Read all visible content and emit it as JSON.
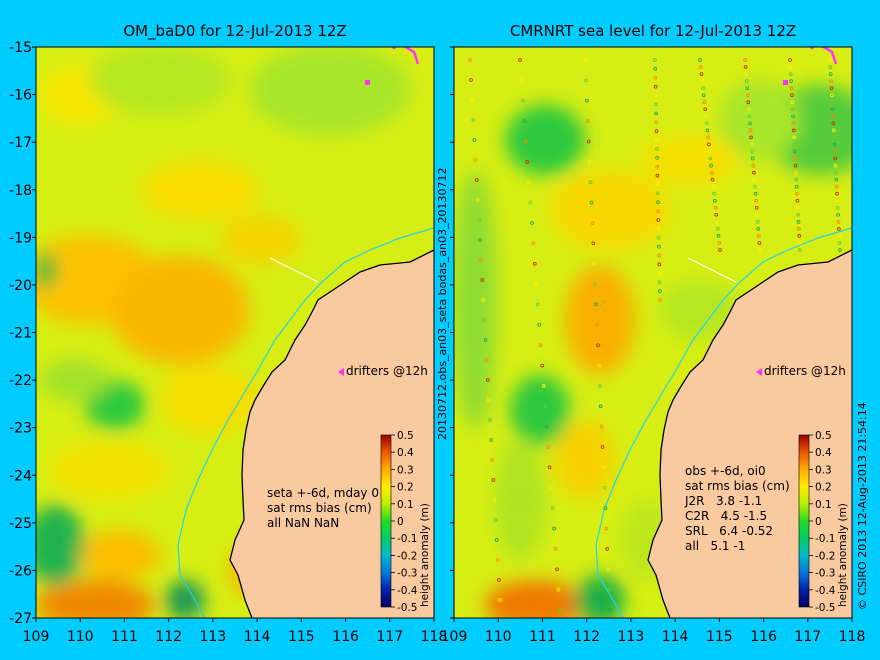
{
  "panels": [
    {
      "title": "OM_baD0 for 12-Jul-2013 12Z",
      "drifters": "drifters @12h",
      "stats": [
        "seta +-6d, mday 0",
        "sat rms bias (cm)",
        "all NaN NaN"
      ]
    },
    {
      "title": "CMRNRT sea level  for 12-Jul-2013 12Z",
      "drifters": "drifters @12h",
      "stats": [
        "obs +-6d, oi0",
        "sat rms bias (cm)",
        "J2R   3.8 -1.1",
        "C2R   4.5 -1.5",
        "SRL   6.4 -0.52",
        "all   5.1 -1"
      ]
    }
  ],
  "center_vertical_label": "20130712.obs_an03_seta     bodas_an03_20130712",
  "right_vertical_label": "© CSIRO 2013   12-Aug-2013 21:54:14",
  "x_ticks": [
    "109",
    "110",
    "111",
    "112",
    "113",
    "114",
    "115",
    "116",
    "117",
    "118"
  ],
  "y_ticks": [
    "-15",
    "-16",
    "-17",
    "-18",
    "-19",
    "-20",
    "-21",
    "-22",
    "-23",
    "-24",
    "-25",
    "-26",
    "-27"
  ],
  "colorbar": {
    "label": "height anomaly (m)",
    "ticks": [
      "0.5",
      "0.4",
      "0.3",
      "0.2",
      "0.1",
      "0",
      "-0.1",
      "-0.2",
      "-0.3",
      "-0.4",
      "-0.5"
    ],
    "range": [
      -0.5,
      0.5
    ]
  },
  "colors": {
    "background": "#00ccff",
    "land": "#f9c99f",
    "coastline": "#000000",
    "isobath": "#22d3e6",
    "drifters": "#ff33ff"
  }
}
